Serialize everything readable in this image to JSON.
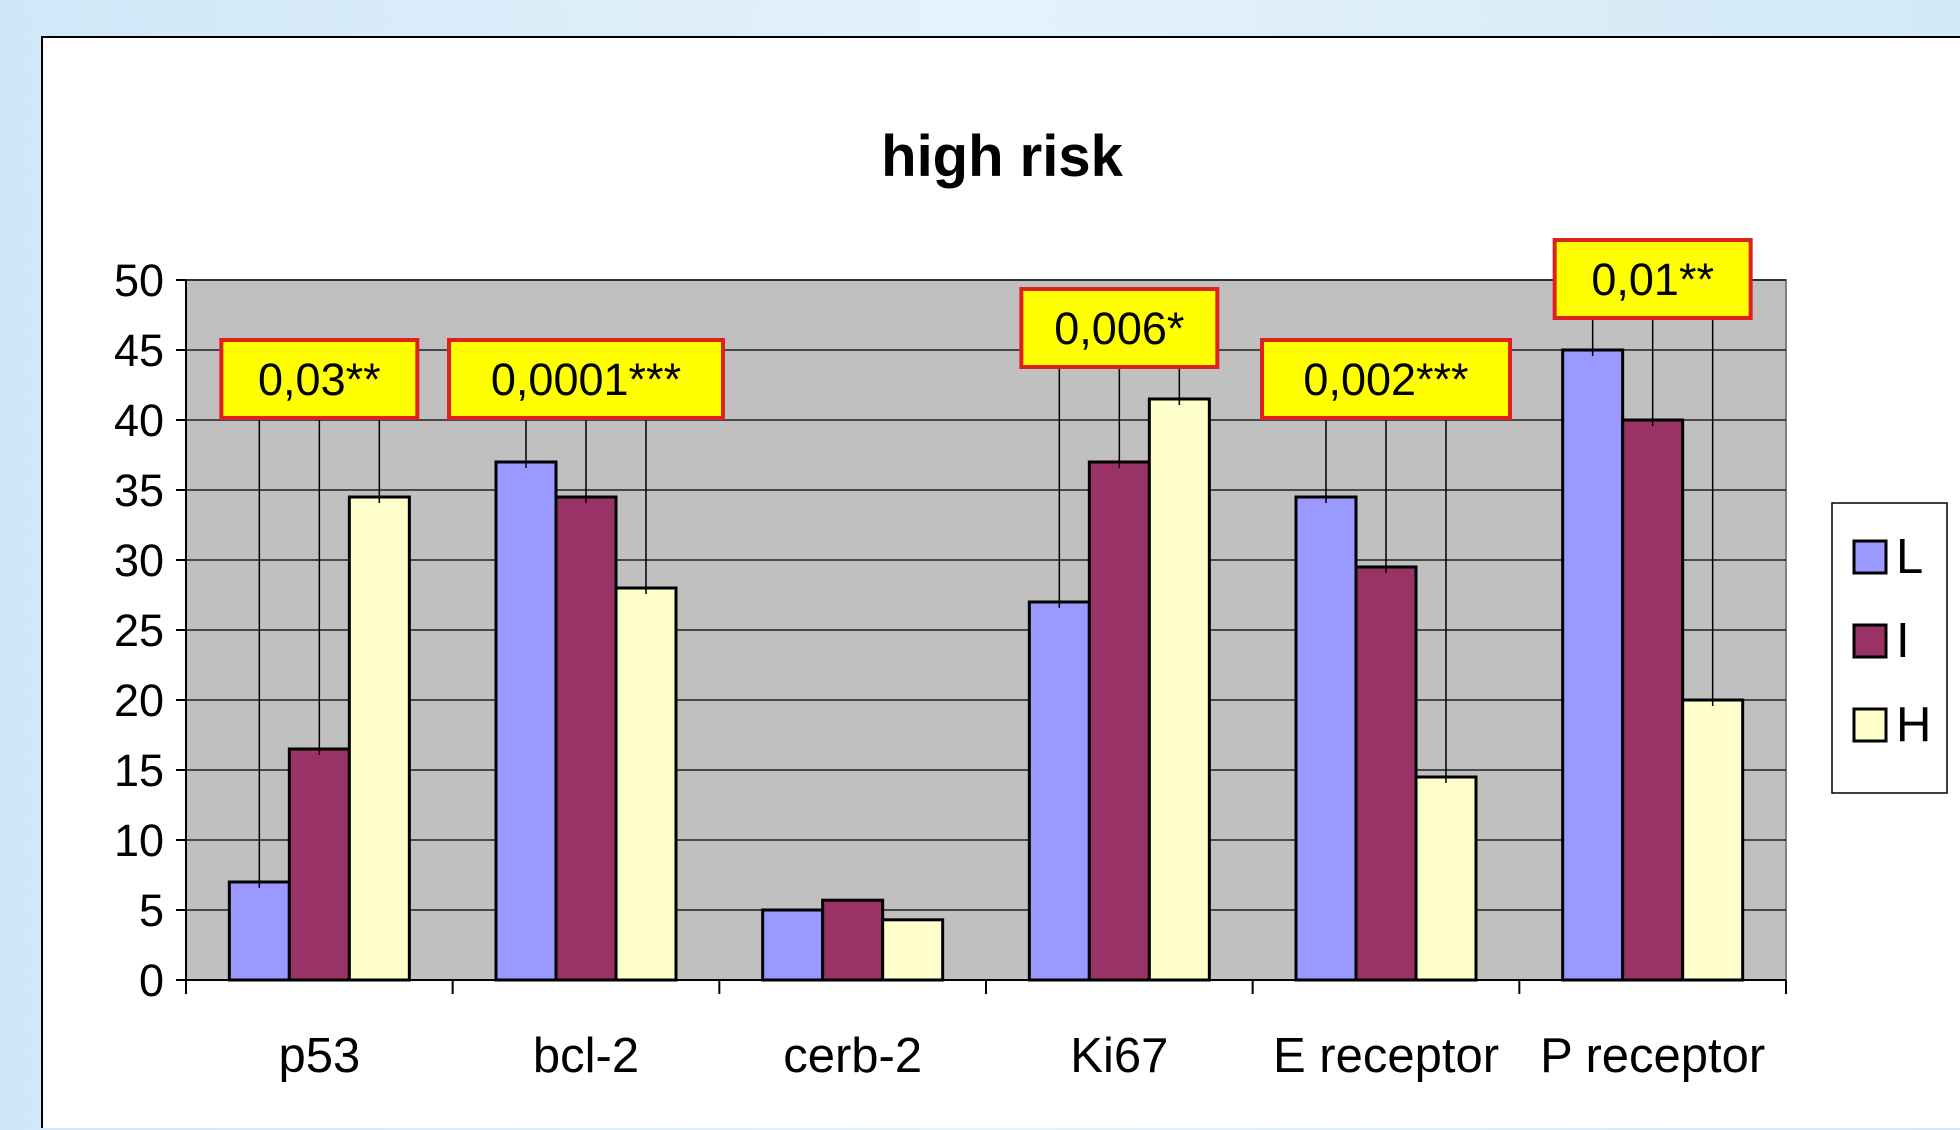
{
  "chart_data": {
    "type": "bar",
    "title": "high risk",
    "categories": [
      "p53",
      "bcl-2",
      "cerb-2",
      "Ki67",
      "E receptor",
      "P receptor"
    ],
    "series": [
      {
        "name": "L",
        "color": "#9999ff",
        "values": [
          7,
          37,
          5,
          27,
          34.5,
          45
        ]
      },
      {
        "name": "I",
        "color": "#993366",
        "values": [
          16.5,
          34.5,
          5.7,
          37,
          29.5,
          40
        ]
      },
      {
        "name": "H",
        "color": "#ffffcc",
        "values": [
          34.5,
          28,
          4.3,
          41.5,
          14.5,
          20
        ]
      }
    ],
    "ylim": [
      0,
      50
    ],
    "yticks": [
      0,
      5,
      10,
      15,
      20,
      25,
      30,
      35,
      40,
      45,
      50
    ],
    "grid": true,
    "plot_background": "#c0c0c0",
    "legend": "right",
    "annotations": [
      {
        "category": "p53",
        "text": "0,03**"
      },
      {
        "category": "bcl-2",
        "text": "0,0001***"
      },
      {
        "category": "Ki67",
        "text": "0,006*"
      },
      {
        "category": "E receptor",
        "text": "0,002***"
      },
      {
        "category": "P receptor",
        "text": "0,01**"
      }
    ],
    "annotation_style": {
      "fill": "#ffff00",
      "border": "#e0201c"
    }
  }
}
